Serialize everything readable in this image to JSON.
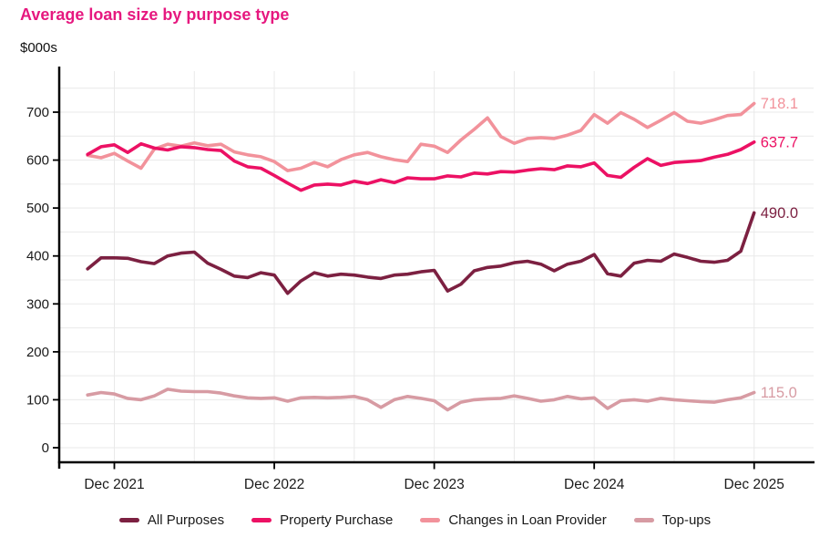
{
  "chart_data": {
    "type": "line",
    "title": "Average loan size by purpose type",
    "y_unit_label": "$000s",
    "title_color": "#e6187f",
    "axis_color": "#000000",
    "grid_color": "#e9e9e9",
    "tick_label_color": "#1a1a1a",
    "ylim": [
      0,
      750
    ],
    "y_ticks": [
      0,
      100,
      200,
      300,
      400,
      500,
      600,
      700
    ],
    "grid": {
      "horizontal_step": 50,
      "vertical_every_months": 6,
      "gridlines_on": true
    },
    "legend_position": "bottom",
    "x_axis_tick_labels": [
      "Dec 2021",
      "Dec 2022",
      "Dec 2023",
      "Dec 2024",
      "Dec 2025"
    ],
    "x_axis_tick_month_indices": [
      2,
      14,
      26,
      38,
      50
    ],
    "x": [
      "Oct 2021",
      "Nov 2021",
      "Dec 2021",
      "Jan 2022",
      "Feb 2022",
      "Mar 2022",
      "Apr 2022",
      "May 2022",
      "Jun 2022",
      "Jul 2022",
      "Aug 2022",
      "Sep 2022",
      "Oct 2022",
      "Nov 2022",
      "Dec 2022",
      "Jan 2023",
      "Feb 2023",
      "Mar 2023",
      "Apr 2023",
      "May 2023",
      "Jun 2023",
      "Jul 2023",
      "Aug 2023",
      "Sep 2023",
      "Oct 2023",
      "Nov 2023",
      "Dec 2023",
      "Jan 2024",
      "Feb 2024",
      "Mar 2024",
      "Apr 2024",
      "May 2024",
      "Jun 2024",
      "Jul 2024",
      "Aug 2024",
      "Sep 2024",
      "Oct 2024",
      "Nov 2024",
      "Dec 2024",
      "Jan 2025",
      "Feb 2025",
      "Mar 2025",
      "Apr 2025",
      "May 2025",
      "Jun 2025",
      "Jul 2025",
      "Aug 2025",
      "Sep 2025",
      "Oct 2025",
      "Nov 2025",
      "Dec 2025"
    ],
    "series": [
      {
        "name": "All Purposes",
        "color": "#7c2041",
        "end_label": "490.0",
        "values": [
          373,
          396,
          396,
          395,
          388,
          384,
          400,
          406,
          408,
          385,
          372,
          358,
          355,
          365,
          360,
          322,
          348,
          365,
          358,
          362,
          360,
          356,
          353,
          360,
          362,
          367,
          370,
          327,
          341,
          369,
          376,
          379,
          386,
          389,
          383,
          369,
          383,
          389,
          403,
          363,
          358,
          385,
          391,
          389,
          404,
          397,
          389,
          387,
          391,
          410,
          490.0
        ]
      },
      {
        "name": "Property Purchase",
        "color": "#ec1164",
        "end_label": "637.7",
        "values": [
          612,
          628,
          632,
          616,
          634,
          625,
          621,
          628,
          626,
          622,
          620,
          598,
          586,
          583,
          568,
          552,
          537,
          548,
          550,
          548,
          556,
          551,
          559,
          553,
          563,
          561,
          561,
          567,
          565,
          573,
          571,
          576,
          575,
          579,
          582,
          580,
          588,
          586,
          594,
          568,
          564,
          585,
          603,
          589,
          595,
          597,
          599,
          606,
          612,
          622,
          637.7
        ]
      },
      {
        "name": "Changes in Loan Provider",
        "color": "#f2929b",
        "end_label": "718.1",
        "values": [
          610,
          605,
          614,
          598,
          583,
          623,
          633,
          629,
          636,
          630,
          633,
          617,
          611,
          607,
          597,
          578,
          583,
          595,
          586,
          601,
          611,
          616,
          607,
          601,
          597,
          633,
          629,
          616,
          642,
          664,
          688,
          649,
          635,
          645,
          647,
          645,
          652,
          662,
          695,
          677,
          699,
          685,
          668,
          683,
          699,
          681,
          677,
          684,
          693,
          695,
          718.1
        ]
      },
      {
        "name": "Top-ups",
        "color": "#d79ba3",
        "end_label": "115.0",
        "values": [
          110,
          115,
          112,
          103,
          100,
          108,
          122,
          118,
          117,
          117,
          114,
          108,
          104,
          103,
          104,
          97,
          104,
          105,
          104,
          105,
          107,
          100,
          84,
          100,
          107,
          103,
          98,
          79,
          95,
          100,
          102,
          103,
          108,
          103,
          97,
          100,
          107,
          102,
          104,
          82,
          98,
          100,
          97,
          103,
          100,
          98,
          96,
          95,
          100,
          104,
          115.0
        ]
      }
    ]
  }
}
